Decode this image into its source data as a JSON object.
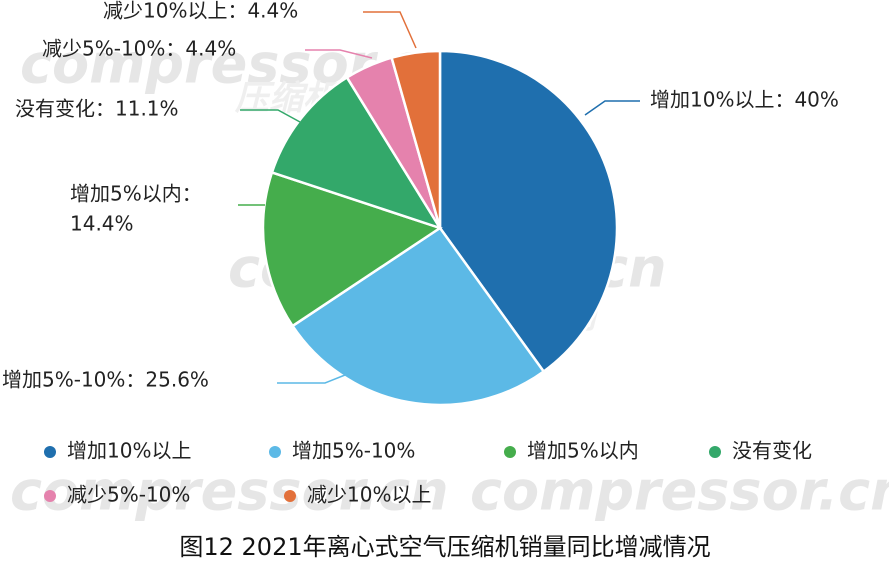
{
  "chart_data": {
    "type": "pie",
    "title": "图12 2021年离心式空气压缩机销量同比增减情况",
    "categories": [
      "增加10%以上",
      "增加5%-10%",
      "增加5%以内",
      "没有变化",
      "减少5%-10%",
      "减少10%以上"
    ],
    "values": [
      40,
      25.6,
      14.4,
      11.1,
      4.4,
      4.4
    ],
    "value_labels": [
      "40%",
      "25.6%",
      "14.4%",
      "11.1%",
      "4.4%",
      "4.4%"
    ],
    "slice_labels": [
      "增加10%以上：40%",
      "增加5%-10%：25.6%",
      [
        "增加5%以内：",
        "14.4%"
      ],
      "没有变化：11.1%",
      "减少5%-10%：4.4%",
      "减少10%以上：4.4%"
    ],
    "colors": [
      "#1f6fae",
      "#5cb9e6",
      "#45ad4c",
      "#33a86a",
      "#e582ad",
      "#e2703a"
    ],
    "legend": "bottom",
    "watermark": [
      "compressor.cn",
      "压缩机网"
    ]
  }
}
